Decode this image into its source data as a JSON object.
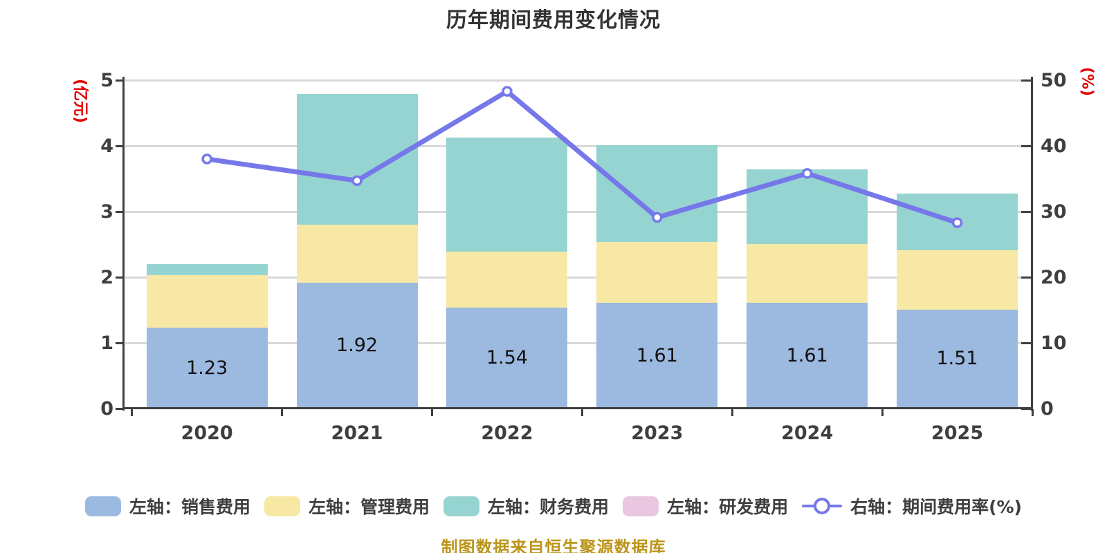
{
  "title": "历年期间费用变化情况",
  "source_note": "制图数据来自恒生聚源数据库",
  "left_axis": {
    "unit": "(亿元)",
    "tick_labels": [
      "0",
      "1",
      "2",
      "3",
      "4",
      "5"
    ],
    "tick_values": [
      0,
      1,
      2,
      3,
      4,
      5
    ]
  },
  "right_axis": {
    "unit": "(%)",
    "tick_labels": [
      "0",
      "10",
      "20",
      "30",
      "40",
      "50"
    ],
    "tick_values": [
      0,
      10,
      20,
      30,
      40,
      50
    ]
  },
  "colors": {
    "sales": "#9cb9df",
    "admin": "#f7e8a6",
    "finance": "#96d4d1",
    "rnd": "#eac6e0",
    "line": "#7678ea",
    "marker_fill": "#ffffff",
    "grid": "#d8d8d8",
    "axis": "#3f3f3f",
    "title": "#333333",
    "unit": "#e00000",
    "source": "#bb9419",
    "bar_label": "#111111"
  },
  "chart_data": {
    "type": "bar",
    "subtype": "stacked-bars-with-line-overlay",
    "title": "历年期间费用变化情况",
    "categories": [
      "2020",
      "2021",
      "2022",
      "2023",
      "2024",
      "2025"
    ],
    "series": [
      {
        "name": "左轴：销售费用",
        "kind": "bar",
        "axis": "left",
        "color_key": "sales",
        "values": [
          1.23,
          1.92,
          1.54,
          1.61,
          1.61,
          1.51
        ],
        "show_labels": true
      },
      {
        "name": "左轴：管理费用",
        "kind": "bar",
        "axis": "left",
        "color_key": "admin",
        "values": [
          0.8,
          0.88,
          0.85,
          0.93,
          0.9,
          0.9
        ],
        "show_labels": false
      },
      {
        "name": "左轴：财务费用",
        "kind": "bar",
        "axis": "left",
        "color_key": "finance",
        "values": [
          0.17,
          1.99,
          1.74,
          1.47,
          1.13,
          0.86
        ],
        "show_labels": false
      },
      {
        "name": "左轴：研发费用",
        "kind": "bar",
        "axis": "left",
        "color_key": "rnd",
        "values": [
          0,
          0,
          0,
          0,
          0,
          0
        ],
        "show_labels": false
      },
      {
        "name": "右轴：期间费用率(%)",
        "kind": "line",
        "axis": "right",
        "color_key": "line",
        "values": [
          38.0,
          34.7,
          48.3,
          29.1,
          35.8,
          28.3
        ],
        "show_labels": false
      }
    ],
    "left_ylim": [
      0,
      5
    ],
    "right_ylim": [
      0,
      50
    ],
    "grid": true,
    "legend_position": "bottom",
    "bar_value_labels": [
      "1.23",
      "1.92",
      "1.54",
      "1.61",
      "1.61",
      "1.51"
    ]
  }
}
